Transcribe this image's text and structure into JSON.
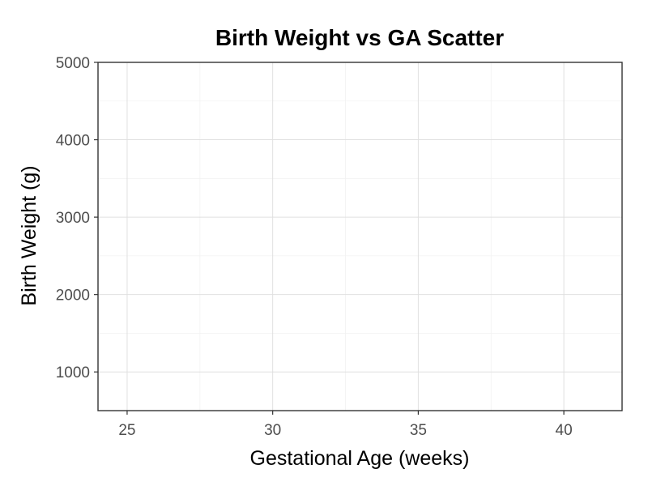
{
  "chart_data": {
    "type": "scatter",
    "title": "Birth Weight vs GA Scatter",
    "xlabel": "Gestational Age (weeks)",
    "ylabel": "Birth Weight (g)",
    "xlim": [
      24.0,
      42.0
    ],
    "ylim": [
      500,
      5000
    ],
    "x_ticks": [
      25,
      30,
      35,
      40
    ],
    "y_ticks": [
      1000,
      2000,
      3000,
      4000,
      5000
    ],
    "x_tick_labels": [
      "25",
      "30",
      "35",
      "40"
    ],
    "y_tick_labels": [
      "1000",
      "2000",
      "3000",
      "4000",
      "5000"
    ],
    "grid": true,
    "points": []
  }
}
